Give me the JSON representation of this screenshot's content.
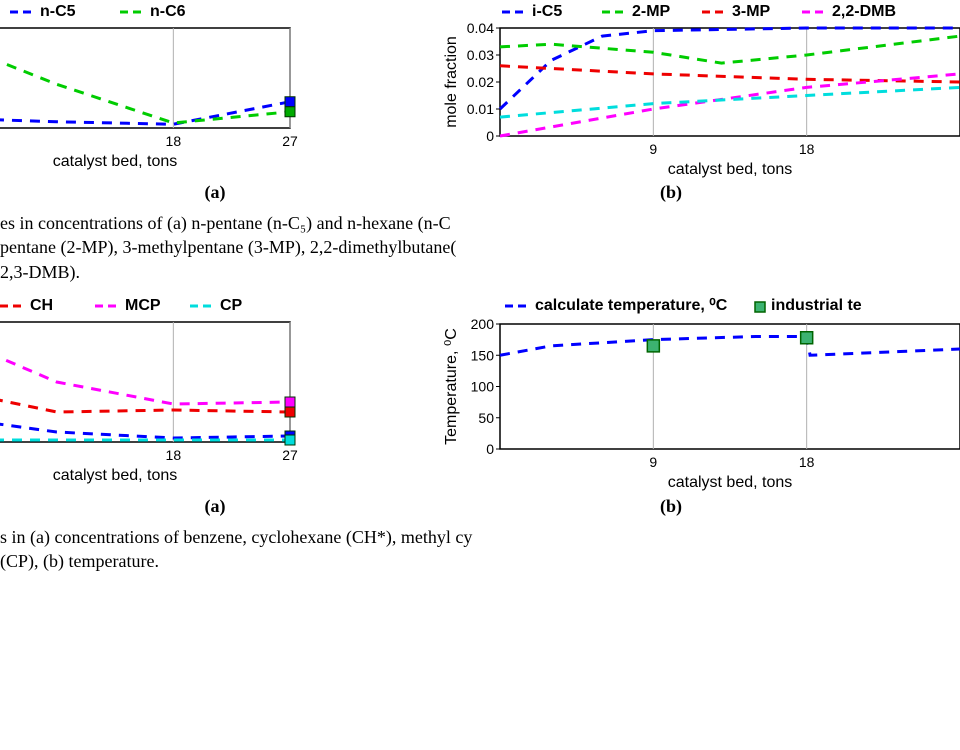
{
  "global": {
    "xlabel": "catalyst bed, tons",
    "x_ticks": [
      9,
      18,
      27
    ],
    "axis_color": "#000000",
    "grid_color": "#b0b0b0",
    "background": "#ffffff",
    "dash": "10,8",
    "stroke_width": 3
  },
  "chart_a1": {
    "sublabel": "(a)",
    "ylabel": "",
    "xlim": [
      0,
      27
    ],
    "ylim": [
      0,
      0.08
    ],
    "legend": [
      {
        "name": "n-C5",
        "color": "#0000ff"
      },
      {
        "name": "n-C6",
        "color": "#00cc00"
      }
    ],
    "series": [
      {
        "name": "n-C5",
        "color": "#0000ff",
        "x": [
          0,
          9,
          18,
          27
        ],
        "y": [
          0.008,
          0.005,
          0.003,
          0.021
        ],
        "marker_end": true,
        "marker_color": "#0000ff"
      },
      {
        "name": "n-C6",
        "color": "#00cc00",
        "x": [
          0,
          9,
          18,
          27
        ],
        "y": [
          0.072,
          0.035,
          0.004,
          0.013
        ],
        "marker_end": true,
        "marker_color": "#00aa00"
      }
    ]
  },
  "chart_b1": {
    "sublabel": "(b)",
    "ylabel": "mole fraction",
    "xlim": [
      0,
      27
    ],
    "ylim": [
      0,
      0.04
    ],
    "y_ticks": [
      0,
      0.01,
      0.02,
      0.03,
      0.04
    ],
    "legend": [
      {
        "name": "i-C5",
        "color": "#0000ff"
      },
      {
        "name": "2-MP",
        "color": "#00cc00"
      },
      {
        "name": "3-MP",
        "color": "#ee0000"
      },
      {
        "name": "2,2-DMB",
        "color": "#ff00ff"
      }
    ],
    "series": [
      {
        "name": "i-C5",
        "color": "#0000ff",
        "x": [
          0,
          3,
          6,
          9,
          18,
          27
        ],
        "y": [
          0.01,
          0.028,
          0.037,
          0.039,
          0.04,
          0.04
        ]
      },
      {
        "name": "2-MP",
        "color": "#00cc00",
        "x": [
          0,
          3,
          9,
          13,
          18,
          27
        ],
        "y": [
          0.033,
          0.034,
          0.031,
          0.027,
          0.03,
          0.037
        ]
      },
      {
        "name": "3-MP",
        "color": "#ee0000",
        "x": [
          0,
          9,
          18,
          27
        ],
        "y": [
          0.026,
          0.023,
          0.021,
          0.02
        ]
      },
      {
        "name": "2,2-DMB",
        "color": "#ff00ff",
        "x": [
          0,
          9,
          18,
          27
        ],
        "y": [
          0.0,
          0.01,
          0.018,
          0.023
        ]
      },
      {
        "name": "2,3-DMB",
        "color": "#00dddd",
        "x": [
          0,
          9,
          18,
          27
        ],
        "y": [
          0.007,
          0.012,
          0.015,
          0.018
        ]
      }
    ]
  },
  "caption1_line1": "es in concentrations of (a) n-pentane (n-C₅) and n-hexane (n-C",
  "caption1_line2": "pentane (2-MP), 3-methylpentane (3-MP), 2,2-dimethylbutane(",
  "caption1_line3": "2,3-DMB).",
  "chart_a2": {
    "sublabel": "(a)",
    "xlim": [
      0,
      27
    ],
    "ylim": [
      0,
      0.06
    ],
    "legend": [
      {
        "name": "CH",
        "color": "#ee0000"
      },
      {
        "name": "MCP",
        "color": "#ff00ff"
      },
      {
        "name": "CP",
        "color": "#00dddd"
      }
    ],
    "series": [
      {
        "name": "MCP",
        "color": "#ff00ff",
        "x": [
          0,
          9,
          18,
          27
        ],
        "y": [
          0.055,
          0.03,
          0.019,
          0.02
        ],
        "marker_end": true,
        "marker_color": "#ff00ff"
      },
      {
        "name": "CH",
        "color": "#ee0000",
        "x": [
          0,
          9,
          18,
          27
        ],
        "y": [
          0.027,
          0.015,
          0.016,
          0.015
        ],
        "marker_end": true,
        "marker_color": "#ee0000"
      },
      {
        "name": "benzene",
        "color": "#0000ff",
        "x": [
          0,
          9,
          18,
          27
        ],
        "y": [
          0.013,
          0.005,
          0.002,
          0.003
        ],
        "marker_end": true,
        "marker_color": "#0000ff"
      },
      {
        "name": "CP",
        "color": "#00dddd",
        "x": [
          0,
          9,
          18,
          27
        ],
        "y": [
          0.001,
          0.001,
          0.001,
          0.001
        ],
        "marker_end": true,
        "marker_color": "#00dddd"
      }
    ]
  },
  "chart_b2": {
    "sublabel": "(b)",
    "ylabel": "Temperature, ⁰C",
    "xlim": [
      0,
      27
    ],
    "ylim": [
      0,
      200
    ],
    "y_ticks": [
      0,
      50,
      100,
      150,
      200
    ],
    "legend": [
      {
        "name": "calculate temperature, ⁰C",
        "color": "#0000ff",
        "type": "line"
      },
      {
        "name": "industrial te",
        "color": "#00aa66",
        "type": "marker"
      }
    ],
    "series": [
      {
        "name": "calc-temp",
        "color": "#0000ff",
        "x": [
          0,
          3,
          9,
          15,
          18,
          18.2,
          27
        ],
        "y": [
          150,
          165,
          175,
          180,
          180,
          150,
          160
        ]
      }
    ],
    "markers": [
      {
        "x": 9,
        "y": 165,
        "fill": "#3cb371",
        "stroke": "#006400"
      },
      {
        "x": 18,
        "y": 178,
        "fill": "#3cb371",
        "stroke": "#006400"
      }
    ]
  },
  "caption2_line1": "s in (a) concentrations of benzene, cyclohexane (CH*), methyl cy",
  "caption2_line2": " (CP), (b) temperature."
}
